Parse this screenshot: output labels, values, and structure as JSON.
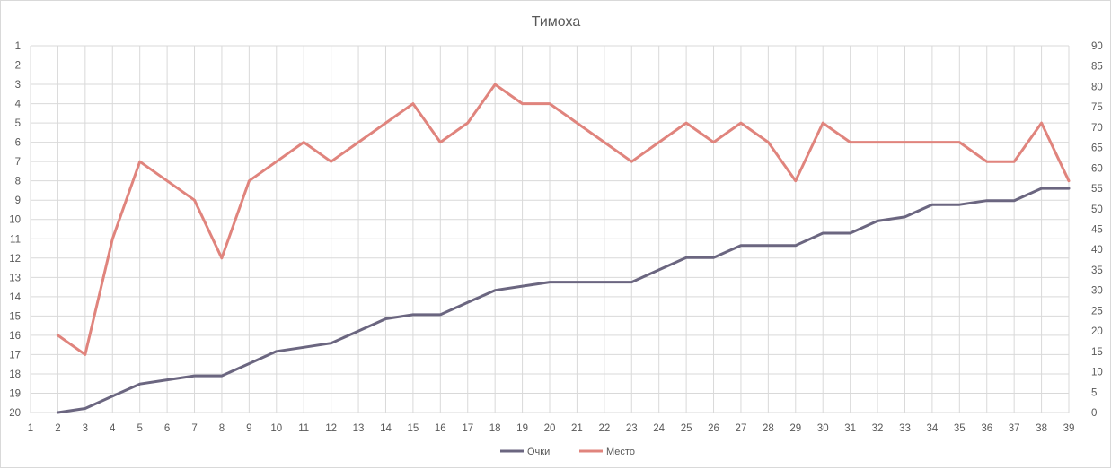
{
  "chart_data": {
    "type": "line",
    "title": "Тимоха",
    "xlabel": "",
    "ylabel": "",
    "categories": [
      1,
      2,
      3,
      4,
      5,
      6,
      7,
      8,
      9,
      10,
      11,
      12,
      13,
      14,
      15,
      16,
      17,
      18,
      19,
      20,
      21,
      22,
      23,
      24,
      25,
      26,
      27,
      28,
      29,
      30,
      31,
      32,
      33,
      34,
      35,
      36,
      37,
      38,
      39
    ],
    "x_tick_labels": [
      "1",
      "2",
      "3",
      "4",
      "5",
      "6",
      "7",
      "8",
      "9",
      "10",
      "11",
      "12",
      "13",
      "14",
      "15",
      "16",
      "17",
      "18",
      "19",
      "20",
      "21",
      "22",
      "23",
      "24",
      "25",
      "26",
      "27",
      "28",
      "29",
      "30",
      "31",
      "32",
      "33",
      "34",
      "35",
      "36",
      "37",
      "38",
      "39"
    ],
    "y_left": {
      "ticks": [
        "1",
        "2",
        "3",
        "4",
        "5",
        "6",
        "7",
        "8",
        "9",
        "10",
        "11",
        "12",
        "13",
        "14",
        "15",
        "16",
        "17",
        "18",
        "19",
        "20"
      ],
      "range": [
        1,
        20
      ],
      "inverted": true
    },
    "y_right": {
      "ticks": [
        "0",
        "5",
        "10",
        "15",
        "20",
        "25",
        "30",
        "35",
        "40",
        "45",
        "50",
        "55",
        "60",
        "65",
        "70",
        "75",
        "80",
        "85",
        "90"
      ],
      "range": [
        0,
        90
      ]
    },
    "grid": true,
    "legend_position": "bottom",
    "series": [
      {
        "name": "Очки",
        "axis": "right",
        "color": "#6b6680",
        "values": [
          null,
          0,
          1,
          4,
          7,
          8,
          9,
          9,
          12,
          15,
          16,
          17,
          20,
          23,
          24,
          24,
          27,
          30,
          31,
          32,
          32,
          32,
          32,
          35,
          38,
          38,
          41,
          41,
          41,
          44,
          44,
          47,
          48,
          51,
          51,
          52,
          52,
          55,
          55
        ]
      },
      {
        "name": "Место",
        "axis": "left",
        "color": "#e0847d",
        "values": [
          null,
          16,
          17,
          11,
          7,
          8,
          9,
          12,
          8,
          7,
          6,
          7,
          6,
          5,
          4,
          6,
          5,
          3,
          4,
          4,
          5,
          6,
          7,
          6,
          5,
          6,
          5,
          6,
          8,
          5,
          6,
          6,
          6,
          6,
          6,
          7,
          7,
          5,
          8
        ]
      }
    ]
  }
}
